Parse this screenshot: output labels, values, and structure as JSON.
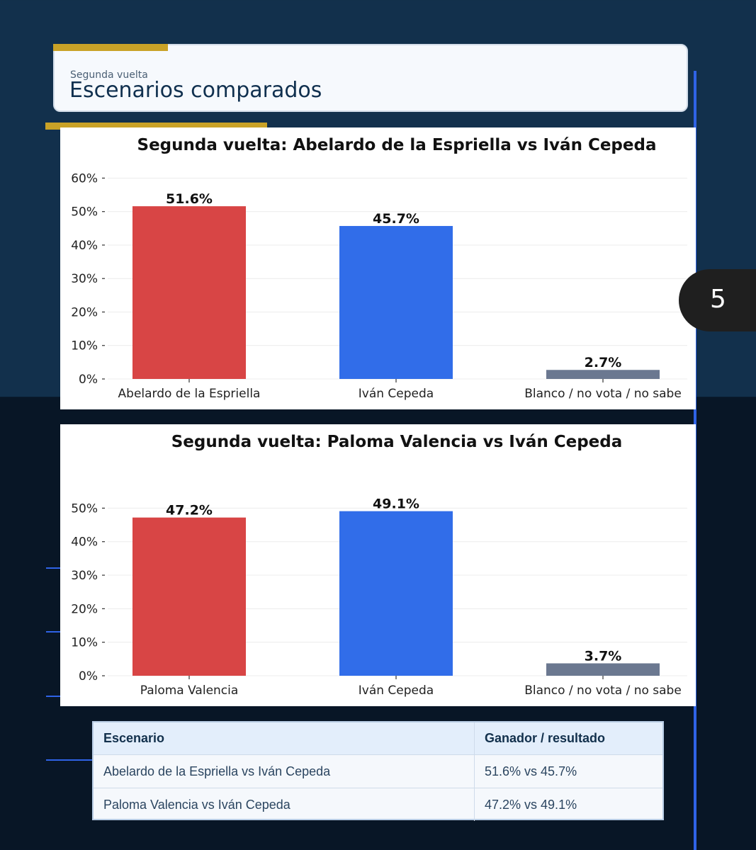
{
  "header": {
    "kicker": "Segunda vuelta",
    "title": "Escenarios comparados"
  },
  "page_number": "5",
  "colors": {
    "candidate_a": "#d84545",
    "cepeda": "#316de9",
    "blanco": "#6b7890",
    "gold": "#c9a227",
    "navy": "#12304c"
  },
  "chart_data": [
    {
      "type": "bar",
      "title": "Segunda vuelta: Abelardo de la Espriella vs Iván Cepeda",
      "categories": [
        "Abelardo de la Espriella",
        "Iván Cepeda",
        "Blanco / no vota / no sabe"
      ],
      "values": [
        51.6,
        45.7,
        2.7
      ],
      "value_labels": [
        "51.6%",
        "45.7%",
        "2.7%"
      ],
      "yticks": [
        0,
        10,
        20,
        30,
        40,
        50,
        60
      ],
      "ytick_labels": [
        "0%",
        "10%",
        "20%",
        "30%",
        "40%",
        "50%",
        "60%"
      ],
      "ylim": [
        0,
        62
      ],
      "grid": true,
      "legend": "none"
    },
    {
      "type": "bar",
      "title": "Segunda vuelta: Paloma Valencia vs Iván Cepeda",
      "categories": [
        "Paloma Valencia",
        "Iván Cepeda",
        "Blanco / no vota / no sabe"
      ],
      "values": [
        47.2,
        49.1,
        3.7
      ],
      "value_labels": [
        "47.2%",
        "49.1%",
        "3.7%"
      ],
      "yticks": [
        0,
        10,
        20,
        30,
        40,
        50
      ],
      "ytick_labels": [
        "0%",
        "10%",
        "20%",
        "30%",
        "40%",
        "50%"
      ],
      "ylim": [
        0,
        56
      ],
      "grid": true,
      "legend": "none"
    }
  ],
  "table": {
    "headers": [
      "Escenario",
      "Ganador / resultado"
    ],
    "rows": [
      [
        "Abelardo de la Espriella vs Iván Cepeda",
        "51.6% vs 45.7%"
      ],
      [
        "Paloma Valencia vs Iván Cepeda",
        "47.2% vs 49.1%"
      ]
    ]
  }
}
